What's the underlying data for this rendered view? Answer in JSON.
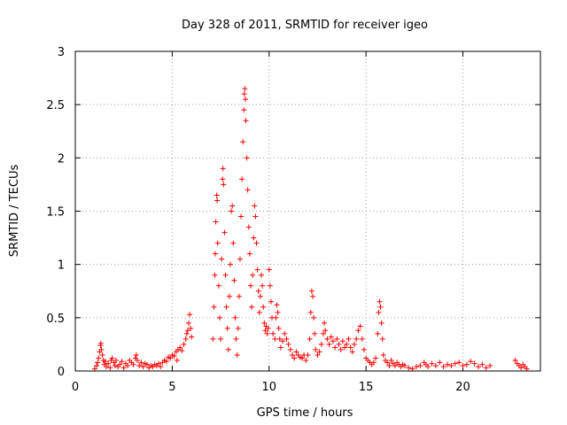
{
  "chart_data": {
    "type": "scatter",
    "title": "Day 328 of 2011, SRMTID for receiver igeo",
    "xlabel": "GPS time / hours",
    "ylabel": "SRMTID / TECUs",
    "xlim": [
      0,
      24
    ],
    "ylim": [
      0,
      3
    ],
    "xticks": [
      0,
      5,
      10,
      15,
      20
    ],
    "yticks": [
      0,
      0.5,
      1,
      1.5,
      2,
      2.5,
      3
    ],
    "xtick_labels": [
      "0",
      "5",
      "10",
      "15",
      "20"
    ],
    "ytick_labels": [
      "0",
      "0.5",
      "1",
      "1.5",
      "2",
      "2.5",
      "3"
    ],
    "grid": true,
    "marker": "+",
    "color": "#ff0000",
    "series": [
      {
        "name": "SRMTID",
        "points": [
          [
            1.0,
            0.02
          ],
          [
            1.1,
            0.05
          ],
          [
            1.15,
            0.08
          ],
          [
            1.2,
            0.12
          ],
          [
            1.25,
            0.18
          ],
          [
            1.3,
            0.24
          ],
          [
            1.32,
            0.26
          ],
          [
            1.35,
            0.2
          ],
          [
            1.4,
            0.15
          ],
          [
            1.45,
            0.1
          ],
          [
            1.5,
            0.06
          ],
          [
            1.55,
            0.09
          ],
          [
            1.6,
            0.04
          ],
          [
            1.7,
            0.07
          ],
          [
            1.8,
            0.03
          ],
          [
            1.85,
            0.1
          ],
          [
            1.9,
            0.12
          ],
          [
            2.0,
            0.08
          ],
          [
            2.05,
            0.05
          ],
          [
            2.1,
            0.1
          ],
          [
            2.2,
            0.04
          ],
          [
            2.3,
            0.06
          ],
          [
            2.4,
            0.09
          ],
          [
            2.5,
            0.03
          ],
          [
            2.6,
            0.07
          ],
          [
            2.7,
            0.05
          ],
          [
            2.8,
            0.1
          ],
          [
            2.9,
            0.08
          ],
          [
            3.0,
            0.06
          ],
          [
            3.1,
            0.12
          ],
          [
            3.15,
            0.15
          ],
          [
            3.2,
            0.1
          ],
          [
            3.3,
            0.05
          ],
          [
            3.4,
            0.08
          ],
          [
            3.5,
            0.04
          ],
          [
            3.6,
            0.07
          ],
          [
            3.7,
            0.06
          ],
          [
            3.8,
            0.03
          ],
          [
            3.9,
            0.05
          ],
          [
            4.0,
            0.04
          ],
          [
            4.1,
            0.06
          ],
          [
            4.2,
            0.05
          ],
          [
            4.3,
            0.07
          ],
          [
            4.4,
            0.04
          ],
          [
            4.5,
            0.08
          ],
          [
            4.6,
            0.1
          ],
          [
            4.7,
            0.09
          ],
          [
            4.8,
            0.13
          ],
          [
            4.9,
            0.12
          ],
          [
            5.0,
            0.15
          ],
          [
            5.1,
            0.14
          ],
          [
            5.2,
            0.18
          ],
          [
            5.25,
            0.1
          ],
          [
            5.3,
            0.2
          ],
          [
            5.4,
            0.22
          ],
          [
            5.5,
            0.19
          ],
          [
            5.6,
            0.25
          ],
          [
            5.7,
            0.3
          ],
          [
            5.75,
            0.35
          ],
          [
            5.8,
            0.38
          ],
          [
            5.85,
            0.45
          ],
          [
            5.9,
            0.53
          ],
          [
            5.95,
            0.4
          ],
          [
            6.0,
            0.32
          ],
          [
            7.1,
            0.3
          ],
          [
            7.15,
            0.6
          ],
          [
            7.2,
            0.9
          ],
          [
            7.22,
            1.1
          ],
          [
            7.25,
            1.4
          ],
          [
            7.3,
            1.65
          ],
          [
            7.32,
            1.6
          ],
          [
            7.35,
            1.2
          ],
          [
            7.4,
            0.8
          ],
          [
            7.45,
            0.5
          ],
          [
            7.5,
            0.3
          ],
          [
            7.55,
            1.05
          ],
          [
            7.6,
            1.8
          ],
          [
            7.62,
            1.9
          ],
          [
            7.65,
            1.75
          ],
          [
            7.7,
            1.3
          ],
          [
            7.75,
            0.9
          ],
          [
            7.8,
            0.6
          ],
          [
            7.85,
            0.4
          ],
          [
            7.9,
            0.2
          ],
          [
            7.95,
            0.7
          ],
          [
            8.0,
            1.0
          ],
          [
            8.05,
            1.5
          ],
          [
            8.1,
            1.55
          ],
          [
            8.15,
            1.2
          ],
          [
            8.2,
            0.85
          ],
          [
            8.25,
            0.5
          ],
          [
            8.3,
            0.3
          ],
          [
            8.35,
            0.15
          ],
          [
            8.4,
            0.4
          ],
          [
            8.45,
            0.7
          ],
          [
            8.5,
            1.05
          ],
          [
            8.55,
            1.45
          ],
          [
            8.6,
            1.8
          ],
          [
            8.65,
            2.15
          ],
          [
            8.7,
            2.45
          ],
          [
            8.72,
            2.6
          ],
          [
            8.75,
            2.65
          ],
          [
            8.78,
            2.55
          ],
          [
            8.8,
            2.35
          ],
          [
            8.85,
            2.0
          ],
          [
            8.9,
            1.7
          ],
          [
            8.95,
            1.35
          ],
          [
            9.0,
            1.1
          ],
          [
            9.05,
            0.8
          ],
          [
            9.1,
            0.6
          ],
          [
            9.15,
            0.9
          ],
          [
            9.2,
            1.25
          ],
          [
            9.25,
            1.55
          ],
          [
            9.3,
            1.45
          ],
          [
            9.35,
            1.2
          ],
          [
            9.4,
            0.95
          ],
          [
            9.45,
            0.75
          ],
          [
            9.5,
            0.55
          ],
          [
            9.55,
            0.7
          ],
          [
            9.6,
            0.9
          ],
          [
            9.65,
            0.8
          ],
          [
            9.7,
            0.6
          ],
          [
            9.75,
            0.45
          ],
          [
            9.8,
            0.38
          ],
          [
            9.85,
            0.42
          ],
          [
            9.9,
            0.35
          ],
          [
            9.95,
            0.4
          ],
          [
            10.0,
            0.95
          ],
          [
            10.05,
            0.8
          ],
          [
            10.1,
            0.65
          ],
          [
            10.15,
            0.5
          ],
          [
            10.2,
            0.35
          ],
          [
            10.3,
            0.3
          ],
          [
            10.35,
            0.5
          ],
          [
            10.4,
            0.62
          ],
          [
            10.45,
            0.55
          ],
          [
            10.5,
            0.4
          ],
          [
            10.55,
            0.3
          ],
          [
            10.6,
            0.22
          ],
          [
            10.7,
            0.28
          ],
          [
            10.8,
            0.35
          ],
          [
            10.9,
            0.3
          ],
          [
            11.0,
            0.25
          ],
          [
            11.1,
            0.2
          ],
          [
            11.2,
            0.15
          ],
          [
            11.3,
            0.12
          ],
          [
            11.4,
            0.18
          ],
          [
            11.5,
            0.15
          ],
          [
            11.6,
            0.13
          ],
          [
            11.7,
            0.12
          ],
          [
            11.8,
            0.15
          ],
          [
            11.9,
            0.1
          ],
          [
            12.0,
            0.15
          ],
          [
            12.1,
            0.3
          ],
          [
            12.15,
            0.55
          ],
          [
            12.2,
            0.75
          ],
          [
            12.25,
            0.7
          ],
          [
            12.3,
            0.5
          ],
          [
            12.35,
            0.35
          ],
          [
            12.4,
            0.2
          ],
          [
            12.5,
            0.15
          ],
          [
            12.6,
            0.18
          ],
          [
            12.7,
            0.25
          ],
          [
            12.8,
            0.35
          ],
          [
            12.85,
            0.45
          ],
          [
            12.9,
            0.38
          ],
          [
            13.0,
            0.3
          ],
          [
            13.1,
            0.25
          ],
          [
            13.2,
            0.32
          ],
          [
            13.3,
            0.28
          ],
          [
            13.4,
            0.22
          ],
          [
            13.5,
            0.3
          ],
          [
            13.6,
            0.25
          ],
          [
            13.7,
            0.2
          ],
          [
            13.8,
            0.28
          ],
          [
            13.9,
            0.22
          ],
          [
            14.0,
            0.25
          ],
          [
            14.1,
            0.3
          ],
          [
            14.2,
            0.22
          ],
          [
            14.3,
            0.18
          ],
          [
            14.4,
            0.25
          ],
          [
            14.5,
            0.3
          ],
          [
            14.6,
            0.38
          ],
          [
            14.7,
            0.42
          ],
          [
            14.8,
            0.3
          ],
          [
            14.9,
            0.2
          ],
          [
            15.0,
            0.12
          ],
          [
            15.1,
            0.1
          ],
          [
            15.2,
            0.08
          ],
          [
            15.3,
            0.06
          ],
          [
            15.4,
            0.08
          ],
          [
            15.5,
            0.12
          ],
          [
            15.6,
            0.35
          ],
          [
            15.65,
            0.55
          ],
          [
            15.7,
            0.65
          ],
          [
            15.75,
            0.6
          ],
          [
            15.8,
            0.45
          ],
          [
            15.85,
            0.3
          ],
          [
            15.9,
            0.15
          ],
          [
            16.0,
            0.1
          ],
          [
            16.1,
            0.08
          ],
          [
            16.2,
            0.05
          ],
          [
            16.3,
            0.1
          ],
          [
            16.4,
            0.07
          ],
          [
            16.5,
            0.05
          ],
          [
            16.6,
            0.08
          ],
          [
            16.7,
            0.06
          ],
          [
            16.8,
            0.04
          ],
          [
            16.9,
            0.06
          ],
          [
            17.0,
            0.05
          ],
          [
            17.2,
            0.03
          ],
          [
            17.4,
            0.02
          ],
          [
            17.6,
            0.04
          ],
          [
            17.8,
            0.05
          ],
          [
            18.0,
            0.08
          ],
          [
            18.1,
            0.06
          ],
          [
            18.2,
            0.04
          ],
          [
            18.4,
            0.07
          ],
          [
            18.6,
            0.05
          ],
          [
            18.8,
            0.08
          ],
          [
            19.0,
            0.04
          ],
          [
            19.2,
            0.06
          ],
          [
            19.4,
            0.05
          ],
          [
            19.6,
            0.07
          ],
          [
            19.8,
            0.08
          ],
          [
            20.0,
            0.05
          ],
          [
            20.2,
            0.06
          ],
          [
            20.4,
            0.09
          ],
          [
            20.6,
            0.07
          ],
          [
            20.8,
            0.04
          ],
          [
            21.0,
            0.06
          ],
          [
            21.2,
            0.03
          ],
          [
            21.4,
            0.05
          ],
          [
            22.7,
            0.1
          ],
          [
            22.8,
            0.07
          ],
          [
            22.9,
            0.05
          ],
          [
            23.0,
            0.03
          ],
          [
            23.1,
            0.06
          ],
          [
            23.2,
            0.04
          ],
          [
            23.3,
            0.02
          ]
        ]
      }
    ]
  }
}
